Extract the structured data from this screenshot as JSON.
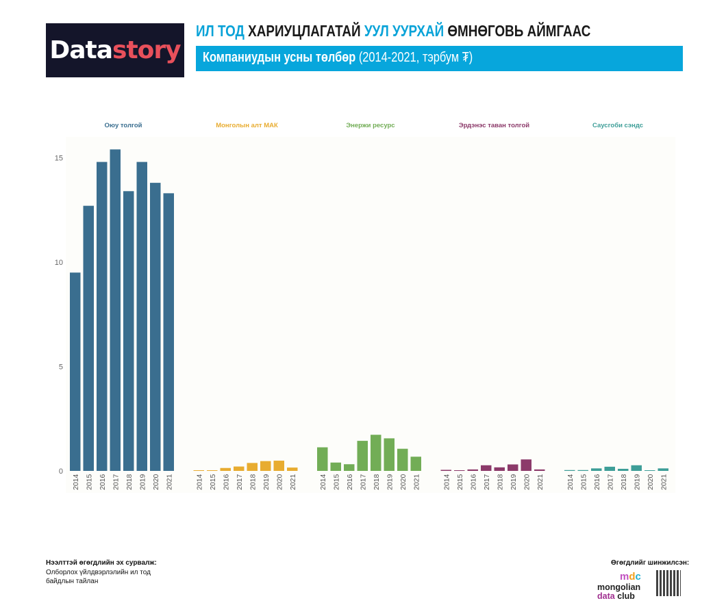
{
  "logo": {
    "text_a": "Data",
    "text_b": "story"
  },
  "header": {
    "title_parts": [
      "ИЛ ТОД",
      "ХАРИУЦЛАГАТАЙ",
      "УУЛ УУРХАЙ",
      "ӨМНӨГОВЬ АЙМГААС"
    ],
    "subtitle_bold": "Компаниудын усны төлбөр",
    "subtitle_rest": "(2014-2021, тэрбум ₮)"
  },
  "footer": {
    "source_label": "Нээлттэй өгөгдлийн эх сурвалж:",
    "source_text_1": "Олборлох үйлдвэрлэлийн ил тод",
    "source_text_2": "байдлын тайлан",
    "analyzed_label": "Өгөгдлийг шинжилсэн:",
    "mdc_line1": "mongolian",
    "mdc_line2a": "data",
    "mdc_line2b": "club"
  },
  "chart_data": {
    "type": "bar",
    "title": "Компаниудын усны төлбөр (2014-2021, тэрбум ₮)",
    "categories": [
      "2014",
      "2015",
      "2016",
      "2017",
      "2018",
      "2019",
      "2020",
      "2021"
    ],
    "ylim": [
      0,
      16
    ],
    "yticks": [
      0,
      5,
      10,
      15
    ],
    "series": [
      {
        "name": "Оюу толгой",
        "color": "#3a6e8f",
        "values": [
          9.5,
          12.7,
          14.8,
          15.4,
          13.4,
          14.8,
          13.8,
          13.3
        ]
      },
      {
        "name": "Монголын алт МАК",
        "color": "#e8ac30",
        "values": [
          0.02,
          0.01,
          0.14,
          0.21,
          0.38,
          0.47,
          0.49,
          0.16
        ]
      },
      {
        "name": "Энержи ресурс",
        "color": "#72ad56",
        "values": [
          1.13,
          0.4,
          0.32,
          1.44,
          1.73,
          1.56,
          1.06,
          0.68
        ]
      },
      {
        "name": "Эрдэнэс таван толгой",
        "color": "#8c3a6a",
        "values": [
          0.05,
          0.03,
          0.07,
          0.27,
          0.17,
          0.31,
          0.55,
          0.07
        ]
      },
      {
        "name": "Саусгоби сэндс",
        "color": "#3e9e98",
        "values": [
          0.04,
          0.04,
          0.12,
          0.2,
          0.1,
          0.27,
          0.03,
          0.12
        ]
      }
    ]
  }
}
